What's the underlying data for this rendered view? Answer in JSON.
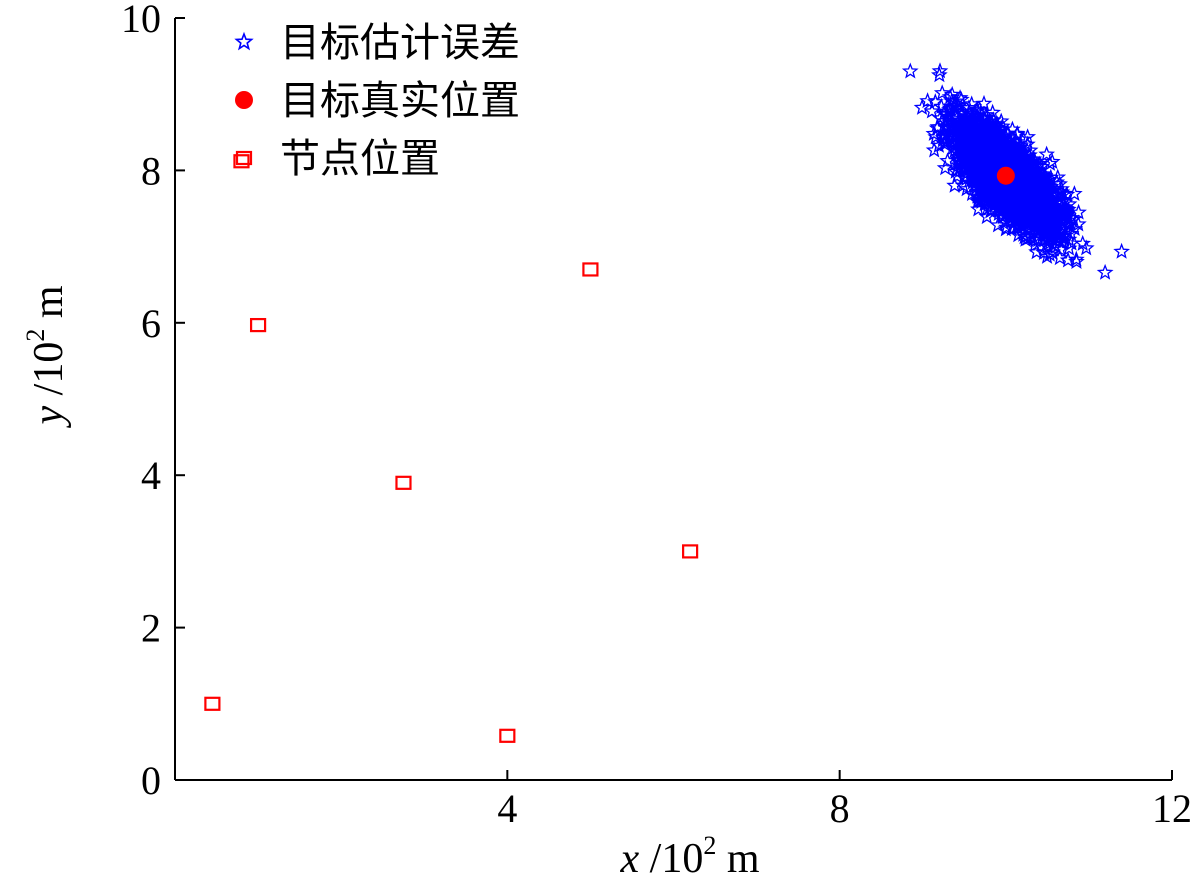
{
  "chart_data": {
    "type": "scatter",
    "title": "",
    "xlabel": {
      "var": "x",
      "slash": "/",
      "unit_base": "10",
      "unit_exp": "2",
      "unit_suffix": "m"
    },
    "ylabel": {
      "var": "y",
      "slash": "/",
      "unit_base": "10",
      "unit_exp": "2",
      "unit_suffix": "m"
    },
    "xlim": [
      0,
      12
    ],
    "ylim": [
      0,
      10
    ],
    "xticks": [
      {
        "value": 0,
        "label": ""
      },
      {
        "value": 4,
        "label": "4"
      },
      {
        "value": 8,
        "label": "8"
      },
      {
        "value": 12,
        "label": "12"
      }
    ],
    "yticks": [
      {
        "value": 0,
        "label": "0"
      },
      {
        "value": 2,
        "label": "2"
      },
      {
        "value": 4,
        "label": "4"
      },
      {
        "value": 6,
        "label": "6"
      },
      {
        "value": 8,
        "label": "8"
      },
      {
        "value": 10,
        "label": "10"
      }
    ],
    "grid": false,
    "legend_position": "top-left",
    "series": [
      {
        "name": "目标估计误差",
        "marker": "star",
        "color": "#0000ff",
        "distribution": {
          "center": [
            10.0,
            7.93
          ],
          "major_axis_direction": [
            -0.62,
            0.785
          ],
          "major_sd": 0.42,
          "minor_sd": 0.17,
          "count": 3000
        },
        "x": [
          8.85,
          9.2,
          10.65,
          10.85,
          9.3,
          9.45,
          10.5,
          10.7
        ],
        "y": [
          9.3,
          9.25,
          6.85,
          6.8,
          8.7,
          8.95,
          7.0,
          7.1
        ]
      },
      {
        "name": "目标真实位置",
        "marker": "circle",
        "color": "#ff0000",
        "x": [
          10.0
        ],
        "y": [
          7.93
        ]
      },
      {
        "name": "节点位置",
        "marker": "square",
        "color": "#ff0000",
        "x": [
          0.8,
          1.0,
          2.75,
          0.45,
          5.0,
          6.2,
          4.0
        ],
        "y": [
          8.12,
          5.97,
          3.9,
          1.0,
          6.7,
          3.0,
          0.58
        ]
      }
    ]
  }
}
